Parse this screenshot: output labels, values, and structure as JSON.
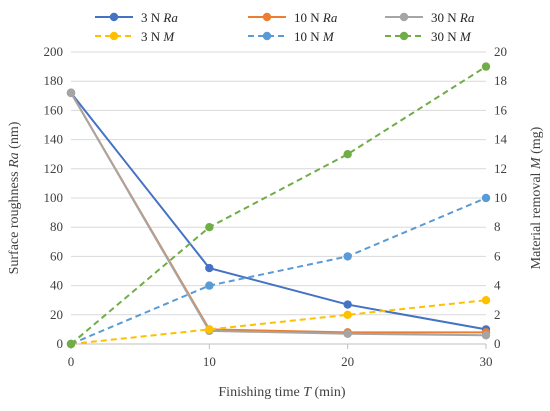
{
  "chart_data": {
    "type": "line",
    "xlabel": {
      "prefix": "Finishing time ",
      "symbol": "T",
      "suffix": " (min)"
    },
    "ylabel_left": {
      "prefix": "Surface roughness ",
      "symbol": "Ra",
      "suffix": " (nm)"
    },
    "ylabel_right": {
      "prefix": "Material removal ",
      "symbol": "M",
      "suffix": " (mg)"
    },
    "x": [
      0,
      10,
      20,
      30
    ],
    "xlim": [
      0,
      30
    ],
    "xticks": [
      "0",
      "10",
      "20",
      "30"
    ],
    "ylim_left": [
      0,
      200
    ],
    "yticks_left": [
      "0",
      "20",
      "40",
      "60",
      "80",
      "100",
      "120",
      "140",
      "160",
      "180",
      "200"
    ],
    "ylim_right": [
      0,
      20
    ],
    "yticks_right": [
      "0",
      "2",
      "4",
      "6",
      "8",
      "10",
      "12",
      "14",
      "16",
      "18",
      "20"
    ],
    "grid": true,
    "legend_position": "top",
    "series": [
      {
        "name": "3 N Ra",
        "label_plain": "3 N",
        "label_italic": "Ra",
        "axis": "left",
        "color": "#4472c4",
        "dashed": false,
        "values": [
          172,
          52,
          27,
          10
        ]
      },
      {
        "name": "10 N Ra",
        "label_plain": "10 N",
        "label_italic": "Ra",
        "axis": "left",
        "color": "#ed7d31",
        "dashed": false,
        "values": [
          172,
          10,
          8,
          8
        ]
      },
      {
        "name": "30 N Ra",
        "label_plain": "30 N",
        "label_italic": "Ra",
        "axis": "left",
        "color": "#a5a5a5",
        "dashed": false,
        "values": [
          172,
          9,
          7,
          6
        ]
      },
      {
        "name": "3 N M",
        "label_plain": "3 N",
        "label_italic": "M",
        "axis": "right",
        "color": "#ffc000",
        "dashed": true,
        "values": [
          0,
          1,
          2,
          3
        ]
      },
      {
        "name": "10 N M",
        "label_plain": "10 N",
        "label_italic": "M",
        "axis": "right",
        "color": "#5b9bd5",
        "dashed": true,
        "values": [
          0,
          4,
          6,
          10
        ]
      },
      {
        "name": "30 N M",
        "label_plain": "30 N",
        "label_italic": "M",
        "axis": "right",
        "color": "#70ad47",
        "dashed": true,
        "values": [
          0,
          8,
          13,
          19
        ]
      }
    ]
  }
}
